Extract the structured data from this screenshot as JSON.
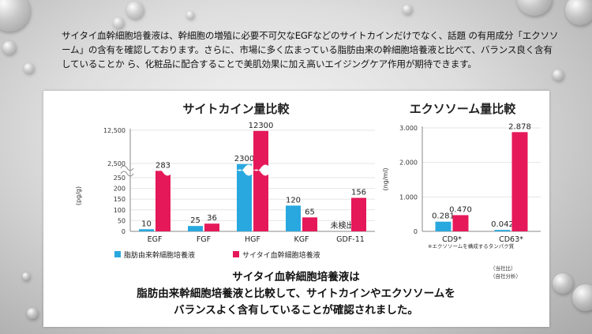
{
  "intro_text": "サイタイ血幹細胞培養液は、幹細胞の増殖に必要不可欠なEGFなどのサイトカインだけでなく、話題 の有用成分「エクソソーム」の含有を確認しております。さらに、市場に多く広まっている脂肪由来の幹細胞培養液と比べて、バランス良く含有していることか ら、化粧品に配合することで美肌効果に加え高いエイジングケア作用が期待できます。",
  "colors": {
    "adipose": "#29a8df",
    "umbilical": "#e5195a"
  },
  "legend": {
    "adipose": "脂肪由来幹細胞培養液",
    "umbilical": "サイタイ血幹細胞培養液"
  },
  "conclusion": [
    "サイタイ血幹細胞培養液は",
    "脂肪由来幹細胞培養液と比較して、サイトカインやエクソソームを",
    "バランスよく含有していることが確認されました。"
  ],
  "source_note": [
    "（当社比）",
    "（自社分析）"
  ],
  "chart_data": [
    {
      "type": "bar",
      "title": "サイトカイン量比較",
      "ylabel": "(pg/g)",
      "axis": "broken",
      "yticks_lower": [
        "0",
        "50",
        "100",
        "150",
        "200",
        "250"
      ],
      "yticks_upper": [
        "2,500",
        "12,500"
      ],
      "categories": [
        "EGF",
        "FGF",
        "HGF",
        "KGF",
        "GDF-11"
      ],
      "series": [
        {
          "name": "脂肪由来幹細胞培養液",
          "values": [
            10,
            25,
            2300,
            120,
            null
          ],
          "labels": [
            "10",
            "25",
            "2300",
            "120",
            "未検出"
          ]
        },
        {
          "name": "サイタイ血幹細胞培養液",
          "values": [
            283,
            36,
            12300,
            65,
            156
          ],
          "labels": [
            "283",
            "36",
            "12300",
            "65",
            "156"
          ]
        }
      ]
    },
    {
      "type": "bar",
      "title": "エクソソーム量比較",
      "ylabel": "(ng/ml)",
      "ylim": [
        0,
        3
      ],
      "yticks": [
        "0",
        "1.000",
        "2.000",
        "3.000"
      ],
      "categories": [
        "CD9*",
        "CD63*"
      ],
      "series": [
        {
          "name": "脂肪由来幹細胞培養液",
          "values": [
            0.281,
            0.042
          ],
          "labels": [
            "0.281",
            "0.042"
          ]
        },
        {
          "name": "サイタイ血幹細胞培養液",
          "values": [
            0.47,
            2.878
          ],
          "labels": [
            "0.470",
            "2.878"
          ]
        }
      ],
      "footnote": "※エクソソームを構成するタンパク質"
    }
  ]
}
